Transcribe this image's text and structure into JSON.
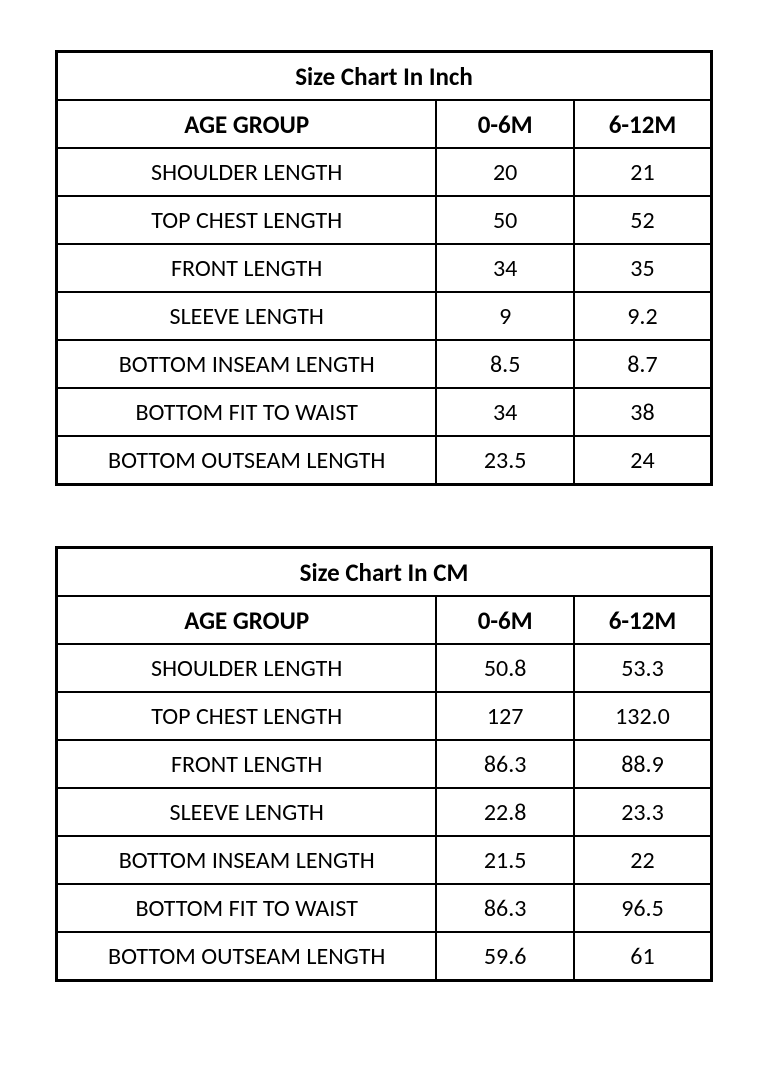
{
  "tables": [
    {
      "title": "Size Chart In Inch",
      "header_label": "AGE GROUP",
      "columns": [
        "0-6M",
        "6-12M"
      ],
      "rows": [
        {
          "label": "SHOULDER LENGTH",
          "values": [
            "20",
            "21"
          ]
        },
        {
          "label": "TOP CHEST LENGTH",
          "values": [
            "50",
            "52"
          ]
        },
        {
          "label": "FRONT LENGTH",
          "values": [
            "34",
            "35"
          ]
        },
        {
          "label": "SLEEVE LENGTH",
          "values": [
            "9",
            "9.2"
          ]
        },
        {
          "label": "BOTTOM INSEAM LENGTH",
          "values": [
            "8.5",
            "8.7"
          ]
        },
        {
          "label": "BOTTOM FIT TO WAIST",
          "values": [
            "34",
            "38"
          ]
        },
        {
          "label": "BOTTOM OUTSEAM LENGTH",
          "values": [
            "23.5",
            "24"
          ]
        }
      ]
    },
    {
      "title": "Size Chart In CM",
      "header_label": "AGE GROUP",
      "columns": [
        "0-6M",
        "6-12M"
      ],
      "rows": [
        {
          "label": "SHOULDER LENGTH",
          "values": [
            "50.8",
            "53.3"
          ]
        },
        {
          "label": "TOP CHEST LENGTH",
          "values": [
            "127",
            "132.0"
          ]
        },
        {
          "label": "FRONT LENGTH",
          "values": [
            "86.3",
            "88.9"
          ]
        },
        {
          "label": "SLEEVE LENGTH",
          "values": [
            "22.8",
            "23.3"
          ]
        },
        {
          "label": "BOTTOM INSEAM LENGTH",
          "values": [
            "21.5",
            "22"
          ]
        },
        {
          "label": "BOTTOM FIT TO WAIST",
          "values": [
            "86.3",
            "96.5"
          ]
        },
        {
          "label": "BOTTOM OUTSEAM LENGTH",
          "values": [
            "59.6",
            "61"
          ]
        }
      ]
    }
  ],
  "styling": {
    "background_color": "#ffffff",
    "border_color": "#000000",
    "text_color": "#000000",
    "title_fontsize": 25,
    "header_fontsize": 25,
    "data_fontsize": 24,
    "font_family": "Calibri, Arial, sans-serif",
    "outer_border_width": 3,
    "inner_border_width": 2,
    "column_widths_pct": [
      58,
      21,
      21
    ]
  }
}
